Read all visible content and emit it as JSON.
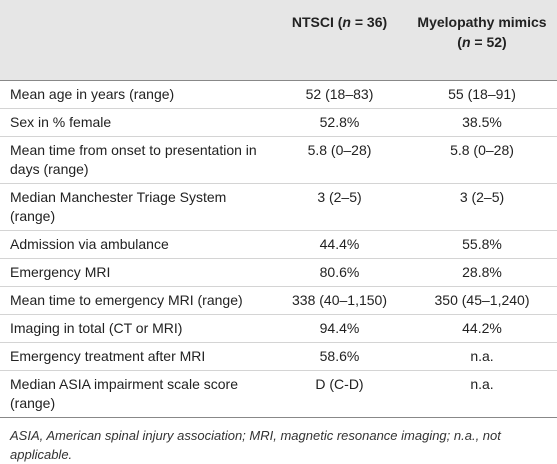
{
  "table": {
    "columns": [
      {
        "parts": [
          "NTSCI (",
          "n",
          " = 36)"
        ]
      },
      {
        "parts": [
          "Myelopathy mimics (",
          "n",
          " = 52)"
        ]
      }
    ],
    "rows": [
      [
        "Mean age in years (range)",
        "52 (18–83)",
        "55 (18–91)"
      ],
      [
        "Sex in % female",
        "52.8%",
        "38.5%"
      ],
      [
        "Mean time from onset to presentation in days (range)",
        "5.8 (0–28)",
        "5.8 (0–28)"
      ],
      [
        "Median Manchester Triage System (range)",
        "3 (2–5)",
        "3 (2–5)"
      ],
      [
        "Admission via ambulance",
        "44.4%",
        "55.8%"
      ],
      [
        "Emergency MRI",
        "80.6%",
        "28.8%"
      ],
      [
        "Mean time to emergency MRI (range)",
        "338 (40–1,150)",
        "350 (45–1,240)"
      ],
      [
        "Imaging in total (CT or MRI)",
        "94.4%",
        "44.2%"
      ],
      [
        "Emergency treatment after MRI",
        "58.6%",
        "n.a."
      ],
      [
        "Median ASIA impairment scale score (range)",
        "D (C-D)",
        "n.a."
      ]
    ],
    "footnote": "ASIA, American spinal injury association; MRI, magnetic resonance imaging; n.a., not applicable."
  }
}
